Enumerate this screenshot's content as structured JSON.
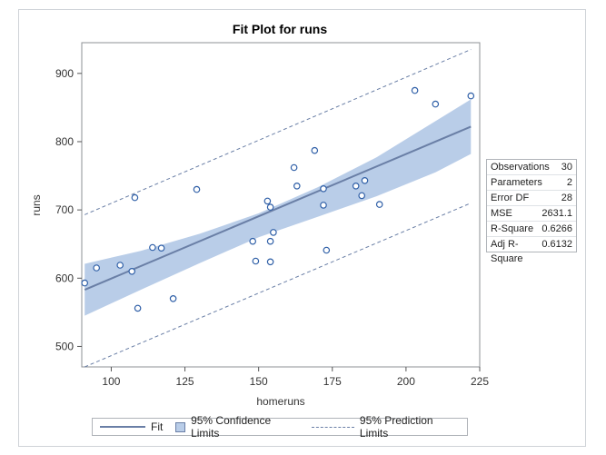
{
  "chart_data": {
    "type": "scatter",
    "title": "Fit Plot for runs",
    "xlabel": "homeruns",
    "ylabel": "runs",
    "xlim": [
      90,
      225
    ],
    "ylim": [
      470,
      945
    ],
    "xticks": [
      100,
      125,
      150,
      175,
      200,
      225
    ],
    "yticks": [
      500,
      600,
      700,
      800,
      900
    ],
    "points": [
      {
        "x": 91,
        "y": 593
      },
      {
        "x": 95,
        "y": 615
      },
      {
        "x": 103,
        "y": 619
      },
      {
        "x": 107,
        "y": 610
      },
      {
        "x": 108,
        "y": 718
      },
      {
        "x": 109,
        "y": 556
      },
      {
        "x": 114,
        "y": 645
      },
      {
        "x": 117,
        "y": 644
      },
      {
        "x": 121,
        "y": 570
      },
      {
        "x": 129,
        "y": 730
      },
      {
        "x": 148,
        "y": 654
      },
      {
        "x": 149,
        "y": 625
      },
      {
        "x": 153,
        "y": 713
      },
      {
        "x": 154,
        "y": 704
      },
      {
        "x": 154,
        "y": 654
      },
      {
        "x": 154,
        "y": 624
      },
      {
        "x": 155,
        "y": 667
      },
      {
        "x": 162,
        "y": 762
      },
      {
        "x": 163,
        "y": 735
      },
      {
        "x": 169,
        "y": 787
      },
      {
        "x": 172,
        "y": 731
      },
      {
        "x": 172,
        "y": 707
      },
      {
        "x": 173,
        "y": 641
      },
      {
        "x": 183,
        "y": 735
      },
      {
        "x": 185,
        "y": 721
      },
      {
        "x": 186,
        "y": 743
      },
      {
        "x": 191,
        "y": 708
      },
      {
        "x": 203,
        "y": 875
      },
      {
        "x": 210,
        "y": 855
      },
      {
        "x": 222,
        "y": 867
      }
    ],
    "fit": {
      "x": [
        91,
        222
      ],
      "y": [
        583,
        822
      ]
    },
    "confidence_limits": {
      "x": [
        91,
        110,
        130,
        150,
        170,
        190,
        210,
        222
      ],
      "lower": [
        545,
        583,
        622,
        660,
        690,
        720,
        755,
        782
      ],
      "upper": [
        621,
        640,
        665,
        695,
        733,
        777,
        830,
        862
      ]
    },
    "prediction_limits": {
      "x": [
        91,
        222
      ],
      "lower": [
        470,
        710
      ],
      "upper": [
        693,
        935
      ]
    },
    "legend": {
      "position": "bottom",
      "fit": "Fit",
      "confidence": "95% Confidence Limits",
      "prediction": "95% Prediction Limits"
    },
    "colors": {
      "line": "#6a7fa6",
      "band": "#b9cde8",
      "marker": "#2f5fa7"
    },
    "fit_statistics": [
      {
        "label": "Observations",
        "value": "30"
      },
      {
        "label": "Parameters",
        "value": "2"
      },
      {
        "label": "Error DF",
        "value": "28"
      },
      {
        "label": "MSE",
        "value": "2631.1"
      },
      {
        "label": "R-Square",
        "value": "0.6266"
      },
      {
        "label": "Adj R-Square",
        "value": "0.6132"
      }
    ]
  }
}
